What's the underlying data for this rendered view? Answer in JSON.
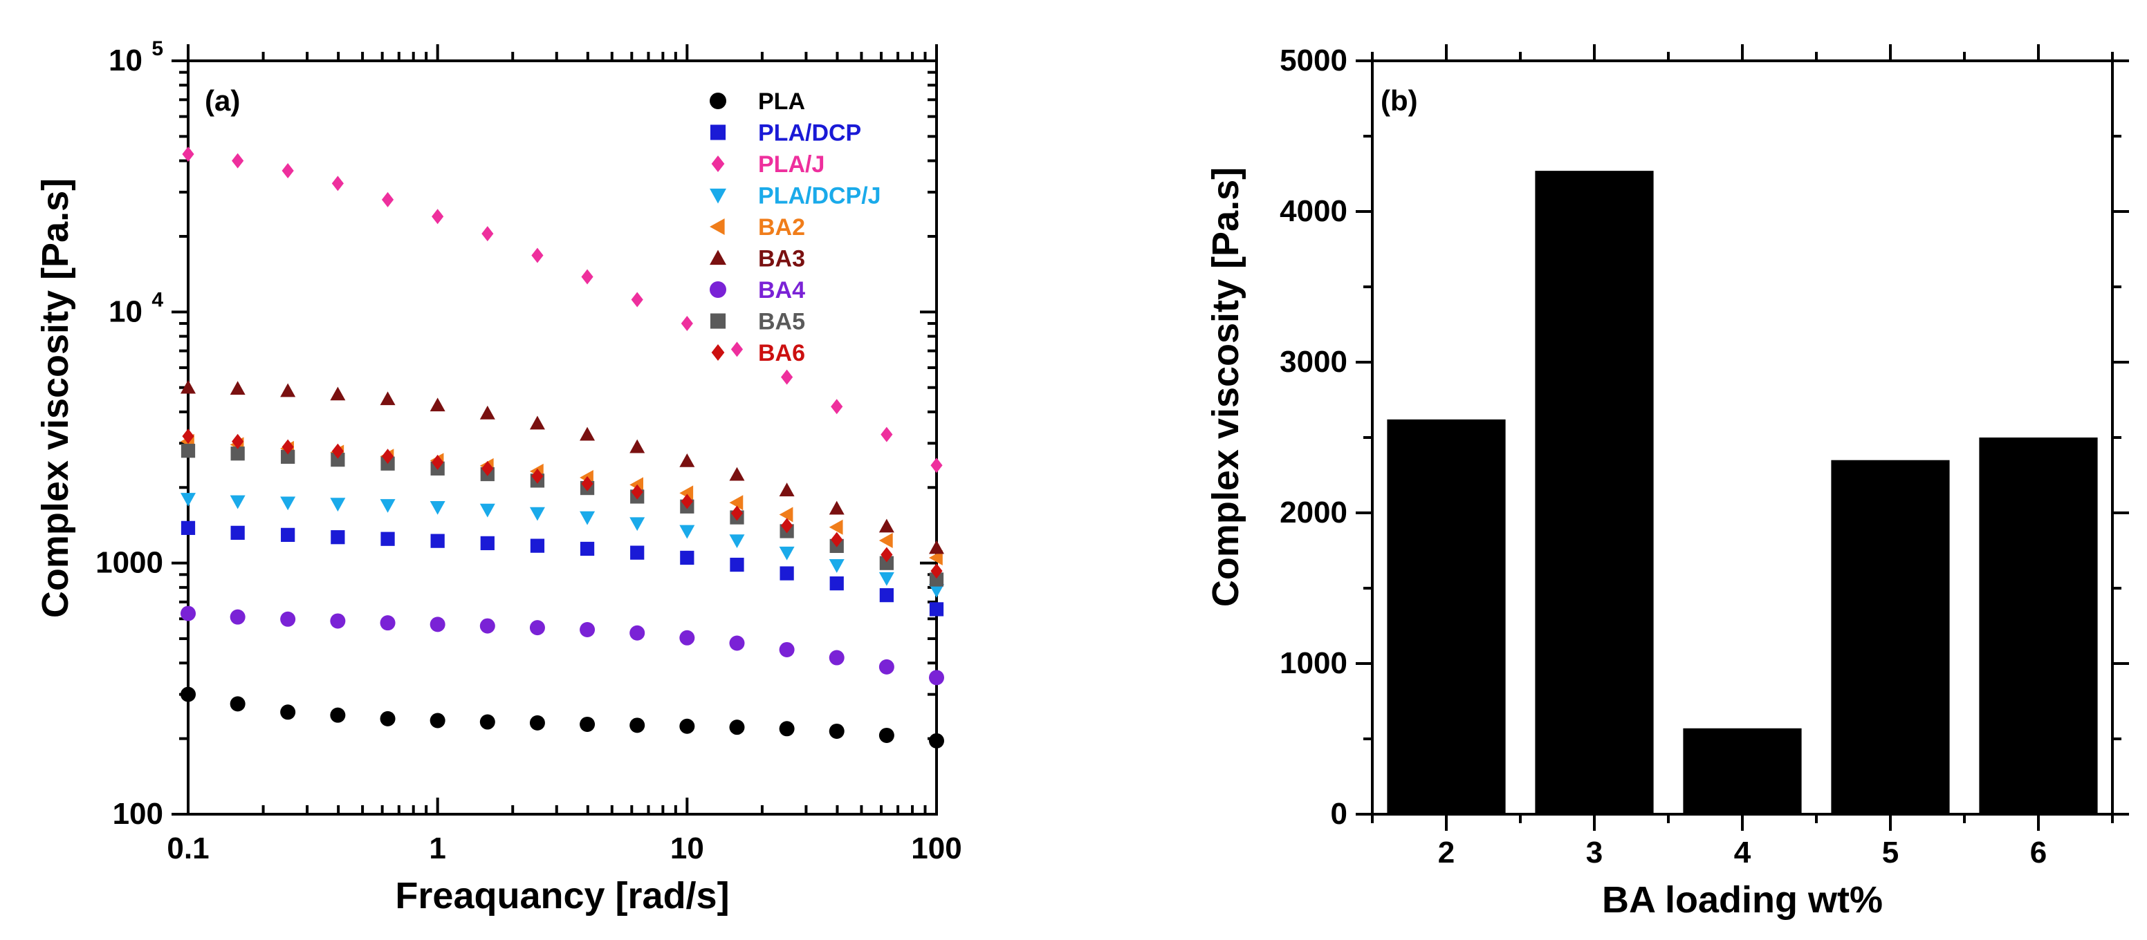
{
  "chart_data": [
    {
      "type": "scatter",
      "panel_label": "(a)",
      "xscale": "log",
      "yscale": "log",
      "xlabel": "Freaquancy [rad/s]",
      "ylabel": "Complex viscosity [Pa.s]",
      "xlim": [
        0.1,
        100
      ],
      "ylim": [
        100,
        100000
      ],
      "x_ticks": [
        {
          "value": 0.1,
          "label": "0.1"
        },
        {
          "value": 1,
          "label": "1"
        },
        {
          "value": 10,
          "label": "10"
        },
        {
          "value": 100,
          "label": "100"
        }
      ],
      "y_ticks": [
        {
          "value": 100,
          "label": "100",
          "sup": ""
        },
        {
          "value": 1000,
          "label": "1000",
          "sup": ""
        },
        {
          "value": 10000,
          "label": "10",
          "sup": "4"
        },
        {
          "value": 100000,
          "label": "10",
          "sup": "5"
        }
      ],
      "legend_position": "top-right",
      "x": [
        0.1,
        0.158,
        0.251,
        0.398,
        0.631,
        1,
        1.585,
        2.512,
        3.981,
        6.31,
        10,
        15.85,
        25.12,
        39.81,
        63.1,
        100
      ],
      "series": [
        {
          "name": "PLA",
          "marker": "circle",
          "color": "#000000",
          "values": [
            300,
            275,
            255,
            248,
            240,
            236,
            233,
            231,
            228,
            226,
            224,
            222,
            219,
            214,
            206,
            196
          ]
        },
        {
          "name": "PLA/DCP",
          "marker": "square",
          "color": "#1a1ad6",
          "values": [
            1380,
            1320,
            1295,
            1268,
            1248,
            1225,
            1200,
            1172,
            1140,
            1100,
            1050,
            985,
            910,
            830,
            745,
            655
          ]
        },
        {
          "name": "PLA/J",
          "marker": "diamond",
          "color": "#ee2f9d",
          "values": [
            42500,
            40000,
            36500,
            32500,
            28000,
            24000,
            20500,
            16800,
            13800,
            11200,
            9000,
            7100,
            5500,
            4200,
            3250,
            2450
          ]
        },
        {
          "name": "PLA/DCP/J",
          "marker": "triangle-down",
          "color": "#1aaaea",
          "values": [
            1800,
            1760,
            1740,
            1720,
            1700,
            1670,
            1630,
            1580,
            1520,
            1440,
            1340,
            1230,
            1100,
            980,
            870,
            780
          ]
        },
        {
          "name": "BA2",
          "marker": "triangle-left",
          "color": "#f07d1a",
          "values": [
            3050,
            2960,
            2860,
            2760,
            2660,
            2560,
            2440,
            2320,
            2190,
            2050,
            1900,
            1740,
            1560,
            1390,
            1230,
            1050
          ]
        },
        {
          "name": "BA3",
          "marker": "triangle-up",
          "color": "#7a1010",
          "values": [
            5000,
            4950,
            4850,
            4700,
            4500,
            4250,
            3950,
            3600,
            3250,
            2900,
            2550,
            2250,
            1950,
            1650,
            1400,
            1150
          ]
        },
        {
          "name": "BA4",
          "marker": "circle",
          "color": "#7a22d6",
          "values": [
            630,
            610,
            598,
            588,
            578,
            570,
            562,
            553,
            543,
            527,
            504,
            480,
            452,
            420,
            386,
            350
          ]
        },
        {
          "name": "BA5",
          "marker": "square",
          "color": "#5a5a5a",
          "values": [
            2800,
            2730,
            2650,
            2580,
            2490,
            2380,
            2260,
            2130,
            1990,
            1840,
            1680,
            1520,
            1340,
            1170,
            1000,
            860
          ]
        },
        {
          "name": "BA6",
          "marker": "diamond",
          "color": "#cc1010",
          "values": [
            3200,
            3050,
            2900,
            2790,
            2660,
            2520,
            2380,
            2220,
            2070,
            1920,
            1760,
            1580,
            1410,
            1240,
            1080,
            930
          ]
        }
      ]
    },
    {
      "type": "bar",
      "panel_label": "(b)",
      "xlabel": "BA loading wt%",
      "ylabel": "Complex viscosity [Pa.s]",
      "categories": [
        "2",
        "3",
        "4",
        "5",
        "6"
      ],
      "values": [
        2620,
        4270,
        570,
        2350,
        2500
      ],
      "ylim": [
        0,
        5000
      ],
      "y_ticks": [
        0,
        1000,
        2000,
        3000,
        4000,
        5000
      ],
      "bar_color": "#000000"
    }
  ]
}
